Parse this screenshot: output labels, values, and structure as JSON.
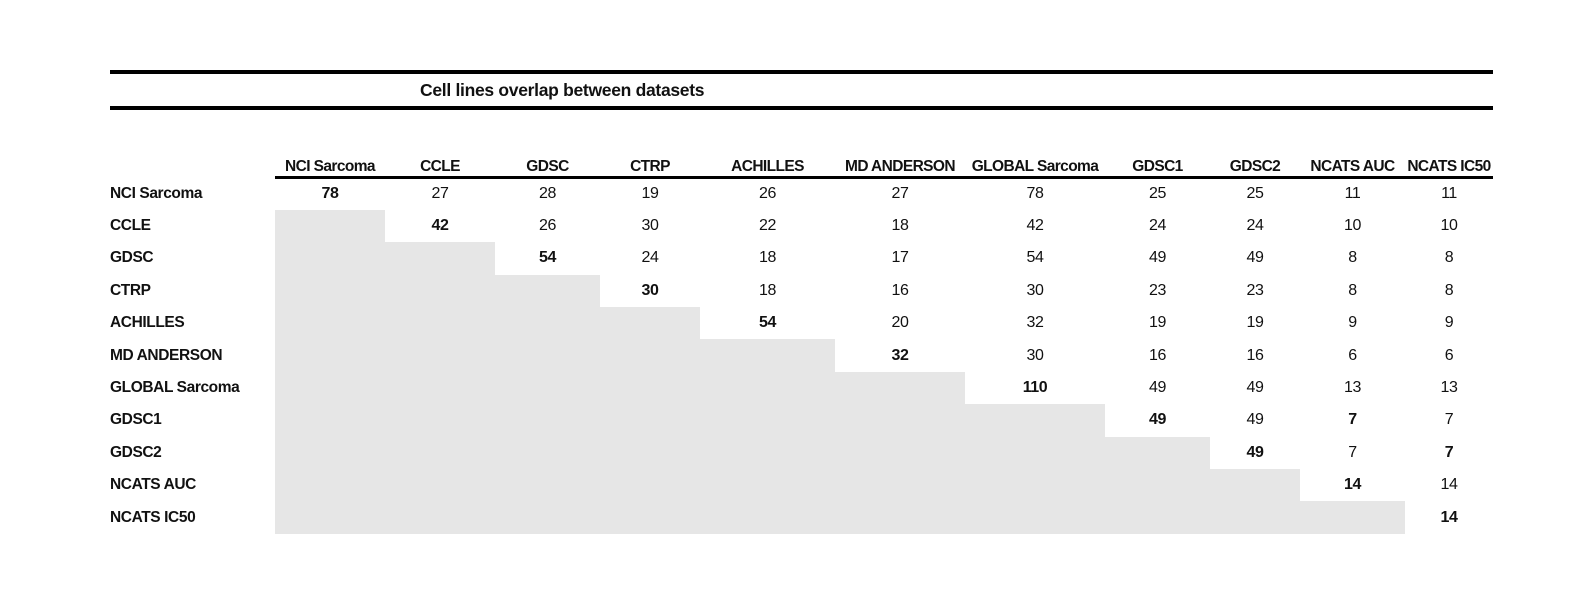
{
  "title": "Cell lines overlap between datasets",
  "chart_data": {
    "type": "table",
    "title": "Cell lines overlap between datasets",
    "datasets": [
      "NCI Sarcoma",
      "CCLE",
      "GDSC",
      "CTRP",
      "ACHILLES",
      "MD ANDERSON",
      "GLOBAL Sarcoma",
      "GDSC1",
      "GDSC2",
      "NCATS AUC",
      "NCATS IC50"
    ],
    "matrix": [
      [
        78,
        27,
        28,
        19,
        26,
        27,
        78,
        25,
        25,
        11,
        11
      ],
      [
        null,
        42,
        26,
        30,
        22,
        18,
        42,
        24,
        24,
        10,
        10
      ],
      [
        null,
        null,
        54,
        24,
        18,
        17,
        54,
        49,
        49,
        8,
        8
      ],
      [
        null,
        null,
        null,
        30,
        18,
        16,
        30,
        23,
        23,
        8,
        8
      ],
      [
        null,
        null,
        null,
        null,
        54,
        20,
        32,
        19,
        19,
        9,
        9
      ],
      [
        null,
        null,
        null,
        null,
        null,
        32,
        30,
        16,
        16,
        6,
        6
      ],
      [
        null,
        null,
        null,
        null,
        null,
        null,
        110,
        49,
        49,
        13,
        13
      ],
      [
        null,
        null,
        null,
        null,
        null,
        null,
        null,
        49,
        49,
        7,
        7
      ],
      [
        null,
        null,
        null,
        null,
        null,
        null,
        null,
        null,
        49,
        7,
        7
      ],
      [
        null,
        null,
        null,
        null,
        null,
        null,
        null,
        null,
        null,
        14,
        14
      ],
      [
        null,
        null,
        null,
        null,
        null,
        null,
        null,
        null,
        null,
        null,
        14
      ]
    ],
    "bold_cells": [
      [
        0,
        0
      ],
      [
        1,
        1
      ],
      [
        2,
        2
      ],
      [
        3,
        3
      ],
      [
        4,
        4
      ],
      [
        5,
        5
      ],
      [
        6,
        6
      ],
      [
        7,
        7
      ],
      [
        7,
        9
      ],
      [
        8,
        8
      ],
      [
        8,
        10
      ],
      [
        9,
        9
      ],
      [
        10,
        10
      ]
    ],
    "shaded_region": "lower-left triangle below diagonal",
    "layout_hints": {
      "legend": "none",
      "grid": "off",
      "shaded_fill": "#e6e6e6",
      "text_color": "#111111",
      "rule_color": "#000000"
    }
  }
}
